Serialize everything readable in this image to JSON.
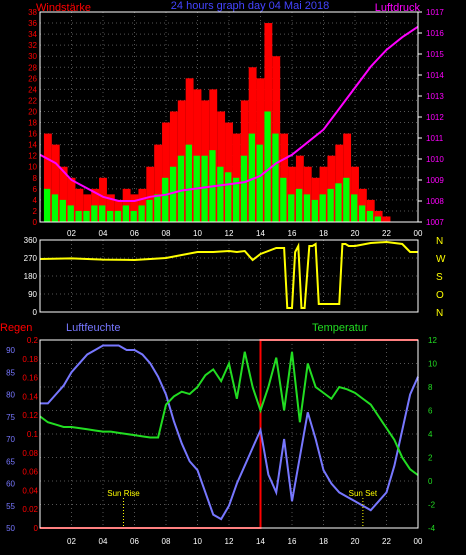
{
  "header": {
    "left_label": "Windstärke",
    "center_title": "24 hours graph day  04 Mai 2018",
    "right_label": "Luftdruck"
  },
  "colors": {
    "background": "#000000",
    "frame": "#ffffff",
    "grid": "#555555",
    "wind": "#ff0000",
    "gust": "#00ff00",
    "pressure": "#ff00ff",
    "direction": "#ffff00",
    "rain": "#ff0000",
    "humidity": "#7777ff",
    "temperature": "#22dd22",
    "title_blue": "#4444ff",
    "right_axis_mid": "#ffff00",
    "sun_marker": "#ffff00"
  },
  "x_ticks": [
    "02",
    "04",
    "06",
    "08",
    "10",
    "12",
    "14",
    "16",
    "18",
    "20",
    "22",
    "00"
  ],
  "chart_data": [
    {
      "type": "bar",
      "panel": "wind",
      "xlim": [
        0,
        24
      ],
      "ylim_left": [
        0,
        38
      ],
      "left_ticks": [
        "0",
        "2",
        "4",
        "6",
        "8",
        "10",
        "12",
        "14",
        "16",
        "18",
        "20",
        "22",
        "24",
        "26",
        "28",
        "30",
        "32",
        "34",
        "36",
        "38"
      ],
      "ylim_right": [
        1007,
        1017
      ],
      "right_ticks": [
        "1007",
        "1008",
        "1009",
        "1010",
        "1011",
        "1012",
        "1013",
        "1014",
        "1015",
        "1016",
        "1017"
      ],
      "series": [
        {
          "name": "Windstärke",
          "type": "bar",
          "x": [
            0.5,
            1.0,
            1.5,
            2.0,
            2.5,
            3.0,
            3.5,
            4.0,
            4.5,
            5.0,
            5.5,
            6.0,
            6.5,
            7.0,
            7.5,
            8.0,
            8.5,
            9.0,
            9.5,
            10.0,
            10.5,
            11.0,
            11.5,
            12.0,
            12.5,
            13.0,
            13.5,
            14.0,
            14.5,
            15.0,
            15.5,
            16.0,
            16.5,
            17.0,
            17.5,
            18.0,
            18.5,
            19.0,
            19.5,
            20.0,
            20.5,
            21.0,
            21.5,
            22.0,
            22.5,
            23.0,
            23.5
          ],
          "values": [
            16,
            14,
            10,
            8,
            6,
            5,
            6,
            8,
            5,
            4,
            6,
            5,
            6,
            10,
            14,
            18,
            20,
            22,
            26,
            24,
            22,
            24,
            20,
            18,
            16,
            22,
            28,
            26,
            36,
            30,
            16,
            10,
            12,
            10,
            8,
            10,
            12,
            14,
            16,
            10,
            6,
            4,
            2,
            1,
            0,
            0,
            0
          ]
        },
        {
          "name": "gust",
          "type": "bar",
          "x": [
            0.5,
            1.0,
            1.5,
            2.0,
            2.5,
            3.0,
            3.5,
            4.0,
            4.5,
            5.0,
            5.5,
            6.0,
            6.5,
            7.0,
            7.5,
            8.0,
            8.5,
            9.0,
            9.5,
            10.0,
            10.5,
            11.0,
            11.5,
            12.0,
            12.5,
            13.0,
            13.5,
            14.0,
            14.5,
            15.0,
            15.5,
            16.0,
            16.5,
            17.0,
            17.5,
            18.0,
            18.5,
            19.0,
            19.5,
            20.0,
            20.5,
            21.0,
            21.5,
            22.0,
            22.5,
            23.0,
            23.5
          ],
          "values": [
            6,
            5,
            4,
            3,
            2,
            2,
            3,
            3,
            2,
            2,
            3,
            2,
            3,
            4,
            5,
            8,
            10,
            12,
            14,
            12,
            12,
            13,
            10,
            9,
            8,
            12,
            16,
            14,
            20,
            16,
            8,
            5,
            6,
            5,
            4,
            5,
            6,
            7,
            8,
            5,
            3,
            2,
            1,
            0,
            0,
            0,
            0
          ]
        },
        {
          "name": "Luftdruck",
          "type": "line",
          "axis": "right",
          "x": [
            0,
            1,
            2,
            3,
            4,
            5,
            6,
            7,
            8,
            9,
            10,
            11,
            12,
            13,
            14,
            15,
            16,
            17,
            18,
            19,
            20,
            21,
            22,
            23,
            24
          ],
          "values": [
            1010.2,
            1009.8,
            1009.0,
            1008.6,
            1008.2,
            1008.0,
            1008.0,
            1008.2,
            1008.3,
            1008.5,
            1008.6,
            1008.7,
            1008.8,
            1008.9,
            1009.2,
            1009.8,
            1010.2,
            1010.8,
            1011.4,
            1012.4,
            1013.4,
            1014.4,
            1015.2,
            1015.8,
            1016.3
          ]
        }
      ]
    },
    {
      "type": "line",
      "panel": "wind_direction",
      "xlim": [
        0,
        24
      ],
      "ylim": [
        0,
        360
      ],
      "left_ticks": [
        "0",
        "90",
        "180",
        "270",
        "360"
      ],
      "right_labels": [
        "N",
        "W",
        "S",
        "O",
        "N"
      ],
      "series": [
        {
          "name": "direction",
          "x": [
            0,
            2,
            4,
            6,
            8,
            9,
            10,
            11,
            12,
            12.5,
            13,
            13.5,
            14,
            15,
            15.5,
            15.7,
            16,
            16.2,
            16.4,
            16.6,
            16.8,
            17.1,
            17.3,
            17.5,
            17.7,
            18,
            18.3,
            18.6,
            19,
            19.2,
            19.4,
            19.6,
            19.8,
            20,
            21,
            22,
            23,
            23.5,
            24
          ],
          "values": [
            265,
            268,
            262,
            260,
            270,
            285,
            300,
            300,
            305,
            300,
            305,
            260,
            290,
            320,
            320,
            20,
            20,
            300,
            330,
            20,
            20,
            330,
            330,
            340,
            40,
            40,
            40,
            40,
            40,
            340,
            340,
            330,
            330,
            330,
            345,
            350,
            340,
            300,
            300
          ]
        }
      ]
    },
    {
      "type": "line",
      "panel": "rain_humidity_temperature",
      "xlim": [
        0,
        24
      ],
      "rain_ticks": [
        "0",
        "0.02",
        "0.04",
        "0.06",
        "0.08",
        "0.1",
        "0.12",
        "0.14",
        "0.16",
        "0.18",
        "0.2"
      ],
      "humidity_ticks": [
        "50",
        "55",
        "60",
        "65",
        "70",
        "75",
        "80",
        "85",
        "90"
      ],
      "temperature_ticks": [
        "-4",
        "-2",
        "0",
        "2",
        "4",
        "6",
        "8",
        "10",
        "12"
      ],
      "series": [
        {
          "name": "Regen",
          "x": [
            0,
            14,
            14,
            24
          ],
          "values": [
            0,
            0,
            0.2,
            0.2
          ]
        },
        {
          "name": "Luftfeuchte",
          "x": [
            0,
            0.5,
            1,
            1.5,
            2,
            2.5,
            3,
            3.5,
            4,
            4.5,
            5,
            5.5,
            6,
            6.5,
            7,
            7.5,
            8,
            8.5,
            9,
            9.5,
            10,
            10.5,
            11,
            11.5,
            12,
            12.5,
            13,
            13.5,
            14,
            14.5,
            15,
            15.5,
            16,
            16.5,
            17,
            17.5,
            18,
            18.5,
            19,
            19.5,
            20,
            20.5,
            21,
            21.5,
            22,
            22.5,
            23,
            23.5,
            24
          ],
          "values": [
            78,
            78,
            80,
            82,
            85,
            87,
            89,
            90,
            91,
            91,
            91,
            90,
            90,
            89,
            87,
            84,
            80,
            74,
            69,
            65,
            63,
            58,
            53,
            52,
            55,
            60,
            64,
            68,
            72,
            62,
            58,
            70,
            56,
            66,
            76,
            70,
            63,
            60,
            58,
            57,
            56,
            55,
            54,
            56,
            58,
            64,
            72,
            80,
            84
          ]
        },
        {
          "name": "Temperatur",
          "x": [
            0,
            0.5,
            1,
            1.5,
            2,
            2.5,
            3,
            3.5,
            4,
            4.5,
            5,
            5.5,
            6,
            6.5,
            7,
            7.5,
            8,
            8.5,
            9,
            9.5,
            10,
            10.5,
            11,
            11.5,
            12,
            12.5,
            13,
            13.5,
            14,
            14.5,
            15,
            15.5,
            16,
            16.5,
            17,
            17.5,
            18,
            18.5,
            19,
            19.5,
            20,
            20.5,
            21,
            21.5,
            22,
            22.5,
            23,
            23.5,
            24
          ],
          "values": [
            5.5,
            5,
            4.8,
            4.6,
            4.6,
            4.5,
            4.4,
            4.3,
            4.2,
            4.2,
            4.1,
            4.0,
            3.9,
            3.8,
            3.7,
            3.7,
            6.5,
            7.2,
            7.6,
            7.4,
            8.0,
            9.0,
            9.5,
            8.5,
            10.0,
            7.0,
            11.0,
            8.0,
            6.0,
            8.0,
            10.5,
            6.0,
            11.0,
            5.0,
            10.0,
            8.0,
            7.5,
            7.0,
            8.0,
            7.8,
            7.5,
            7.0,
            6.5,
            5.5,
            4.5,
            3.5,
            2.0,
            1.0,
            0.5
          ]
        }
      ],
      "annotations": [
        {
          "label": "Sun Rise",
          "x": 5.3
        },
        {
          "label": "Sun Set",
          "x": 20.5
        }
      ],
      "labels": {
        "rain": "Regen",
        "humidity": "Luftfeuchte",
        "temperature": "Temperatur"
      }
    }
  ]
}
